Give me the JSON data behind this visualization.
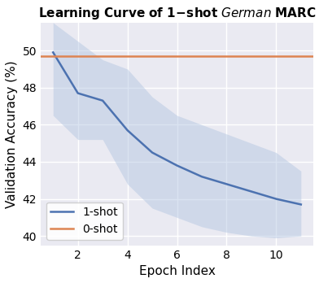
{
  "xlabel": "Epoch Index",
  "ylabel": "Validation Accuracy (%)",
  "epochs": [
    1,
    2,
    3,
    4,
    5,
    6,
    7,
    8,
    9,
    10,
    11
  ],
  "mean_1shot": [
    49.9,
    47.7,
    47.3,
    45.7,
    44.5,
    43.8,
    43.2,
    42.8,
    42.4,
    42.0,
    41.7
  ],
  "std_upper_1shot": [
    51.5,
    50.5,
    49.5,
    49.0,
    47.5,
    46.5,
    46.0,
    45.5,
    45.0,
    44.5,
    43.5
  ],
  "std_lower_1shot": [
    46.5,
    45.2,
    45.2,
    42.8,
    41.5,
    41.0,
    40.5,
    40.2,
    40.0,
    39.9,
    40.0
  ],
  "zeroshot_value": 49.7,
  "line_color_1shot": "#4C72B0",
  "fill_color_1shot": "#afc3e0",
  "fill_alpha": 0.45,
  "line_color_0shot": "#DD8452",
  "bg_color": "#EAEAF2",
  "grid_color": "white",
  "ylim": [
    39.5,
    51.5
  ],
  "xlim": [
    0.5,
    11.5
  ],
  "xticks": [
    2,
    4,
    6,
    8,
    10
  ],
  "yticks": [
    40,
    42,
    44,
    46,
    48,
    50
  ],
  "legend_labels": [
    "1-shot",
    "0-shot"
  ],
  "legend_loc": "lower left",
  "fontsize_title": 11,
  "fontsize_axis": 11,
  "fontsize_ticks": 10,
  "fontsize_legend": 10,
  "line_width": 1.8
}
